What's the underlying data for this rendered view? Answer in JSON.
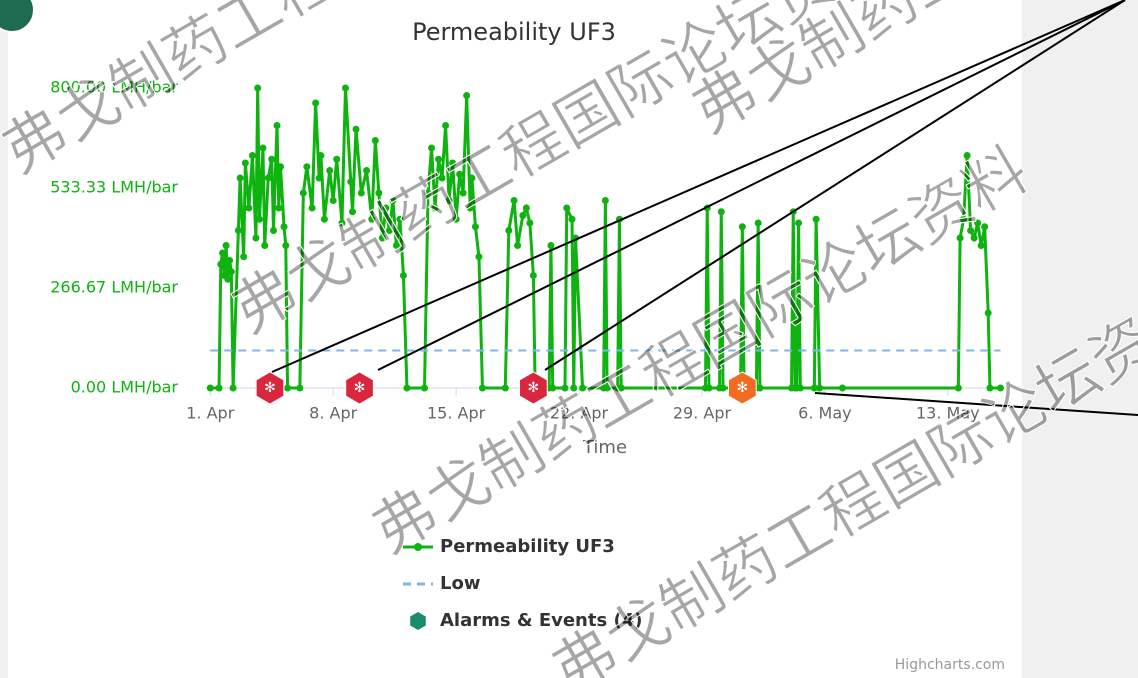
{
  "chart_data": {
    "type": "line",
    "title": "Permeability UF3",
    "xlabel": "Time",
    "credits": "Highcharts.com",
    "watermark": "弗戈制药工程国际论坛资料",
    "xlim": [
      -0.3,
      45.2
    ],
    "xticks": [
      {
        "value": 0,
        "label": "1. Apr"
      },
      {
        "value": 7,
        "label": "8. Apr"
      },
      {
        "value": 14,
        "label": "15. Apr"
      },
      {
        "value": 21,
        "label": "22. Apr"
      },
      {
        "value": 28,
        "label": "29. Apr"
      },
      {
        "value": 35,
        "label": "6. May"
      },
      {
        "value": 42,
        "label": "13. May"
      }
    ],
    "ylim": [
      0,
      800
    ],
    "yticks": [
      {
        "value": 0,
        "label": "0.00 LMH/bar"
      },
      {
        "value": 266.67,
        "label": "266.67 LMH/bar"
      },
      {
        "value": 533.33,
        "label": "533.33 LMH/bar"
      },
      {
        "value": 800,
        "label": "800.00 LMH/bar"
      }
    ],
    "series": [
      {
        "name": "Permeability UF3",
        "color": "#0fb30f",
        "style": "solid",
        "x": [
          0,
          0.5,
          0.6,
          0.7,
          0.8,
          0.9,
          1.0,
          1.1,
          1.2,
          1.3,
          1.6,
          1.7,
          1.9,
          2.0,
          2.2,
          2.4,
          2.6,
          2.7,
          2.8,
          3.0,
          3.1,
          3.3,
          3.5,
          3.6,
          3.8,
          3.9,
          4.0,
          4.2,
          4.3,
          4.4,
          5.1,
          5.3,
          5.5,
          5.8,
          6.0,
          6.2,
          6.3,
          6.5,
          6.8,
          7.0,
          7.2,
          7.5,
          7.7,
          8.0,
          8.1,
          8.3,
          8.6,
          8.9,
          9.2,
          9.4,
          9.6,
          9.8,
          10.0,
          10.2,
          10.4,
          10.6,
          10.8,
          11.0,
          11.2,
          12.2,
          12.4,
          12.6,
          12.8,
          13.0,
          13.2,
          13.4,
          13.6,
          13.8,
          14.0,
          14.2,
          14.4,
          14.6,
          14.8,
          14.9,
          15.1,
          15.3,
          15.5,
          16.8,
          17.0,
          17.3,
          17.5,
          17.8,
          18.0,
          18.2,
          18.4,
          18.5,
          19.3,
          19.4,
          19.5,
          20.2,
          20.3,
          20.6,
          20.7,
          20.8,
          21.2,
          22.4,
          22.5,
          22.6,
          23.2,
          23.3,
          23.4,
          28.2,
          28.3,
          28.4,
          29.0,
          29.1,
          29.2,
          30.2,
          30.3,
          30.4,
          31.1,
          31.2,
          31.3,
          33.1,
          33.2,
          33.3,
          33.4,
          33.5,
          33.6,
          34.4,
          34.5,
          34.7,
          36.0,
          42.6,
          42.7,
          42.9,
          43.1,
          43.3,
          43.5,
          43.7,
          43.9,
          44.1,
          44.3,
          44.4,
          45.0
        ],
        "values": [
          0,
          0,
          330,
          360,
          300,
          380,
          290,
          340,
          310,
          0,
          420,
          560,
          350,
          600,
          480,
          620,
          400,
          800,
          450,
          640,
          380,
          560,
          610,
          420,
          700,
          480,
          590,
          430,
          380,
          0,
          0,
          520,
          590,
          480,
          760,
          560,
          620,
          450,
          580,
          500,
          610,
          440,
          800,
          550,
          470,
          690,
          520,
          580,
          450,
          660,
          520,
          400,
          480,
          420,
          500,
          380,
          450,
          300,
          0,
          0,
          520,
          640,
          480,
          610,
          560,
          700,
          500,
          600,
          450,
          570,
          520,
          780,
          480,
          560,
          430,
          350,
          0,
          0,
          420,
          500,
          380,
          460,
          480,
          440,
          300,
          0,
          0,
          380,
          0,
          0,
          480,
          450,
          0,
          400,
          0,
          0,
          500,
          0,
          0,
          450,
          0,
          0,
          480,
          0,
          0,
          470,
          0,
          0,
          430,
          0,
          0,
          440,
          0,
          0,
          470,
          0,
          0,
          440,
          0,
          0,
          450,
          0,
          0,
          0,
          400,
          450,
          620,
          420,
          400,
          440,
          380,
          430,
          200,
          0,
          0
        ]
      },
      {
        "name": "Low",
        "color": "#7cb5ec",
        "style": "dash",
        "x": [
          0,
          45
        ],
        "values": [
          100,
          100
        ]
      },
      {
        "name": "Alarms & Events (4)",
        "color": "#1a8c6e",
        "style": "marker",
        "x": [
          3.4,
          8.5,
          18.4,
          30.3
        ],
        "values": [
          0,
          0,
          0,
          0
        ],
        "colors": [
          "#d7263d",
          "#d7263d",
          "#d7263d",
          "#f26b21"
        ]
      }
    ]
  }
}
